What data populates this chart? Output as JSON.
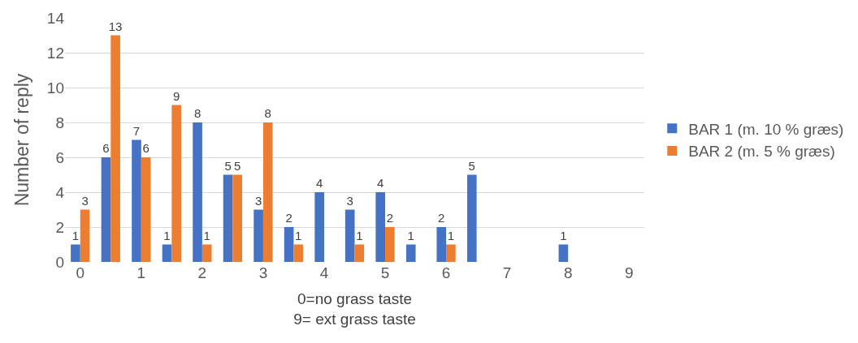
{
  "chart_data": {
    "type": "bar",
    "xlabel": "0=no grass taste\n9= ext grass taste",
    "ylabel": "Number of reply",
    "categories": [
      "0",
      null,
      "1",
      null,
      "2",
      null,
      "3",
      null,
      "4",
      null,
      "5",
      null,
      "6",
      null,
      "7",
      null,
      "8",
      null,
      "9"
    ],
    "series": [
      {
        "name": "BAR 1 (m. 10 % græs)",
        "color": "#4472c4",
        "values": [
          1,
          6,
          7,
          1,
          8,
          5,
          3,
          2,
          4,
          3,
          4,
          1,
          2,
          5,
          null,
          null,
          1,
          null,
          null
        ]
      },
      {
        "name": "BAR 2 (m. 5 % græs)",
        "color": "#ed7d31",
        "values": [
          3,
          13,
          6,
          9,
          1,
          5,
          8,
          1,
          null,
          1,
          2,
          null,
          1,
          null,
          null,
          null,
          null,
          null,
          null
        ]
      }
    ],
    "ylim": [
      0,
      14
    ],
    "yticks": [
      0,
      2,
      4,
      6,
      8,
      10,
      12,
      14
    ],
    "grid": "y",
    "legend": "right",
    "data_labels": true
  }
}
